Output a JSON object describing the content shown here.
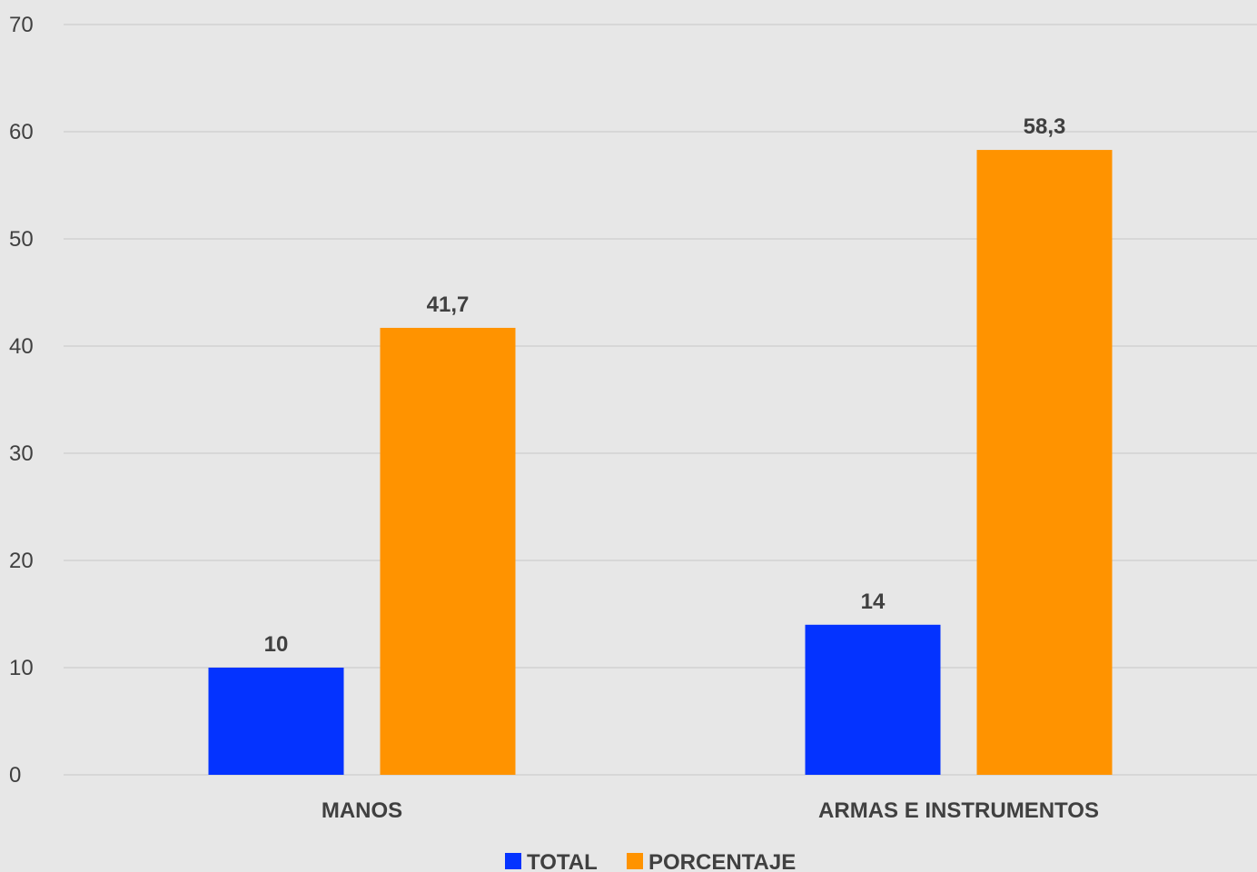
{
  "chart_data": {
    "type": "bar",
    "categories": [
      "MANOS",
      "ARMAS E INSTRUMENTOS"
    ],
    "series": [
      {
        "name": "TOTAL",
        "values": [
          10,
          14
        ],
        "labels": [
          "10",
          "14"
        ],
        "color": "#0433ff"
      },
      {
        "name": "PORCENTAJE",
        "values": [
          41.7,
          58.3
        ],
        "labels": [
          "41,7",
          "58,3"
        ],
        "color": "#ff9300"
      }
    ],
    "yticks": [
      "0",
      "10",
      "20",
      "30",
      "40",
      "50",
      "60",
      "70"
    ],
    "ylim": [
      0,
      70
    ],
    "grid": true,
    "legend": "bottom-center",
    "background": "#e7e7e7",
    "text_color": "#404040"
  }
}
